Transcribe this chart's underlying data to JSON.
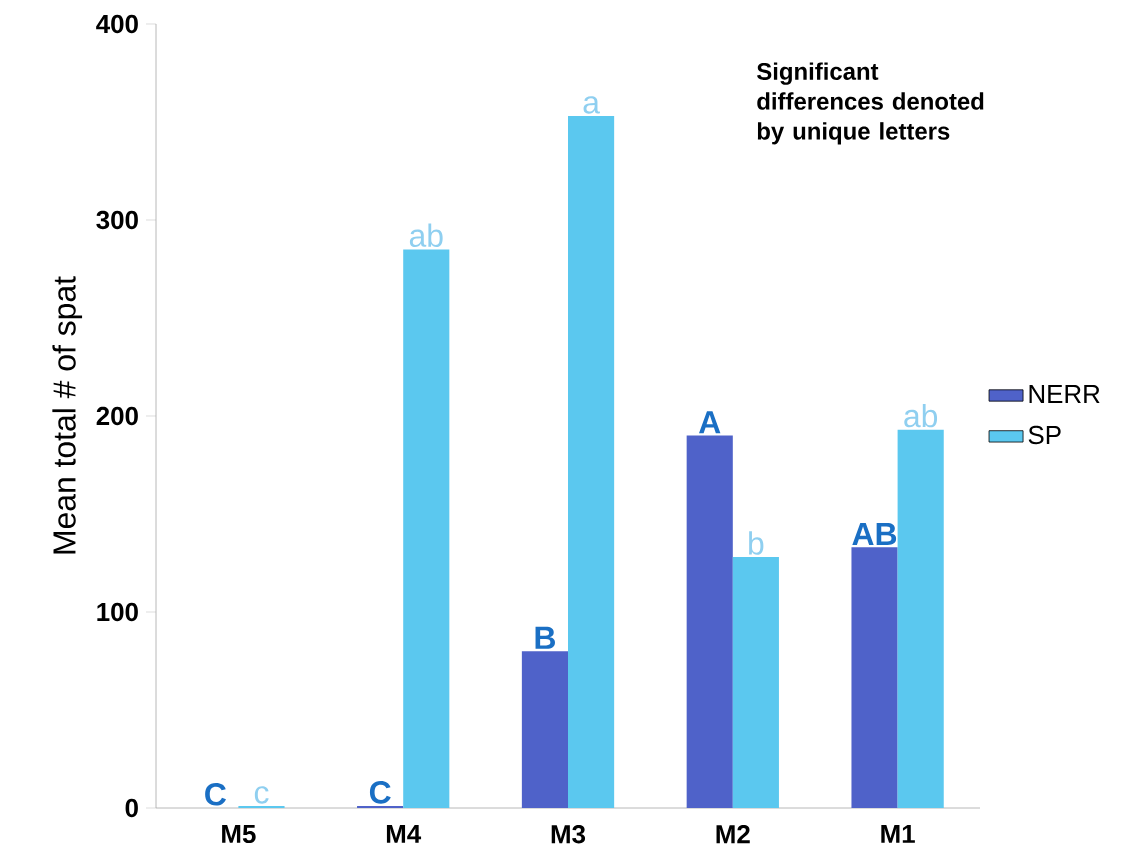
{
  "chart_data": {
    "type": "bar",
    "ylabel": "Mean total # of spat",
    "categories": [
      "M5",
      "M4",
      "M3",
      "M2",
      "M1"
    ],
    "series": [
      {
        "name": "NERR",
        "color": "#4f62c9",
        "values": [
          0,
          1,
          80,
          190,
          133
        ]
      },
      {
        "name": "SP",
        "color": "#5bc8ef",
        "values": [
          1,
          285,
          353,
          128,
          193
        ]
      }
    ],
    "ylim": [
      0,
      400
    ],
    "yticks": [
      0,
      100,
      200,
      300,
      400
    ],
    "legend": "right",
    "annotations": [
      "Significant differences denoted by unique letters",
      {
        "text": "C",
        "x": "M5",
        "y": 0
      },
      {
        "text": "C",
        "x": "M4",
        "y": 1
      },
      {
        "text": "B",
        "x": "M3",
        "y": 80
      },
      {
        "text": "A",
        "x": "M2",
        "y": 190
      },
      {
        "text": "AB",
        "x": "M1",
        "y": 133
      },
      {
        "text": "c",
        "x": "M5",
        "y": 1
      },
      {
        "text": "ab",
        "x": "M4",
        "y": 285
      },
      {
        "text": "a",
        "x": "M3",
        "y": 353
      },
      {
        "text": "b",
        "x": "M2",
        "y": 128
      },
      {
        "text": "ab",
        "x": "M1",
        "y": 193
      }
    ]
  }
}
